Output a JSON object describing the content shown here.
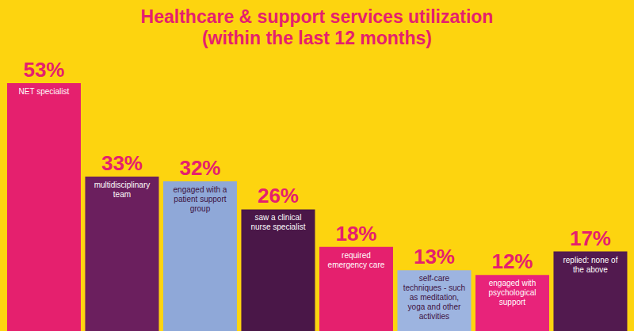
{
  "chart_data": {
    "type": "bar",
    "title": "Healthcare & support services utilization (within the last 12 months)",
    "categories": [
      "NET specialist",
      "multidisciplinary team",
      "engaged with a patient support group",
      "saw a clinical nurse specialist",
      "required emergency care",
      "self-care techniques - such as meditation, yoga and other activities",
      "engaged with psychological support",
      "replied: none of the above"
    ],
    "values": [
      53,
      33,
      32,
      26,
      18,
      13,
      12,
      17
    ],
    "value_labels": [
      "53%",
      "33%",
      "32%",
      "26%",
      "18%",
      "13%",
      "12%",
      "17%"
    ],
    "colors": [
      "#e5206e",
      "#6b1f5e",
      "#8fa8d8",
      "#4a1748",
      "#e5206e",
      "#9db4e0",
      "#e8237a",
      "#521a4f"
    ],
    "data_labels": true,
    "tick_labels": false
  }
}
